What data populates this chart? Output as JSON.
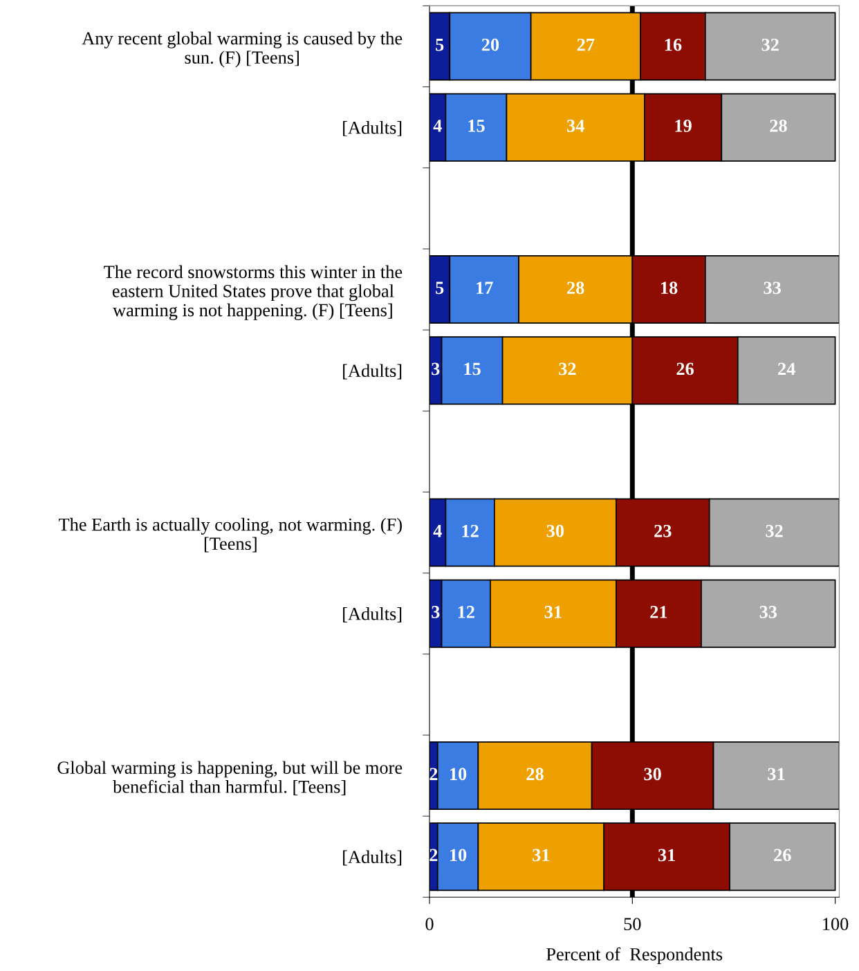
{
  "chart_data": {
    "type": "bar",
    "orientation": "horizontal",
    "stacked": true,
    "data_labels": true,
    "xlabel": "Percent of  Respondents",
    "categories": [
      "Any recent global warming is caused by the\nsun. (F) [Teens]",
      "[Adults]",
      null,
      "The record snowstorms this winter in the\neastern United States prove that global\nwarming is not happening. (F) [Teens]",
      "[Adults]",
      null,
      "The Earth is actually cooling, not warming. (F)\n[Teens]",
      "[Adults]",
      null,
      "Global warming is happening, but will be more\nbeneficial than harmful. [Teens]",
      "[Adults]"
    ],
    "series": [
      {
        "color": "#0c1e9a",
        "values": [
          5,
          4,
          null,
          5,
          3,
          null,
          4,
          3,
          null,
          2,
          2
        ]
      },
      {
        "color": "#3b7ce2",
        "values": [
          20,
          15,
          null,
          17,
          15,
          null,
          12,
          12,
          null,
          10,
          10
        ]
      },
      {
        "color": "#eea000",
        "values": [
          27,
          34,
          null,
          28,
          32,
          null,
          30,
          31,
          null,
          28,
          31
        ]
      },
      {
        "color": "#8e0d02",
        "values": [
          16,
          19,
          null,
          18,
          26,
          null,
          23,
          21,
          null,
          30,
          31
        ]
      },
      {
        "color": "#a9a9a9",
        "values": [
          32,
          28,
          null,
          33,
          24,
          null,
          32,
          33,
          null,
          31,
          26
        ]
      }
    ],
    "xlim": [
      0,
      101
    ],
    "xticks": [
      0,
      50,
      100
    ],
    "ref_lines": [
      {
        "axis": "x",
        "value": 50,
        "color": "#000000"
      }
    ],
    "grid": false,
    "legend": false
  }
}
